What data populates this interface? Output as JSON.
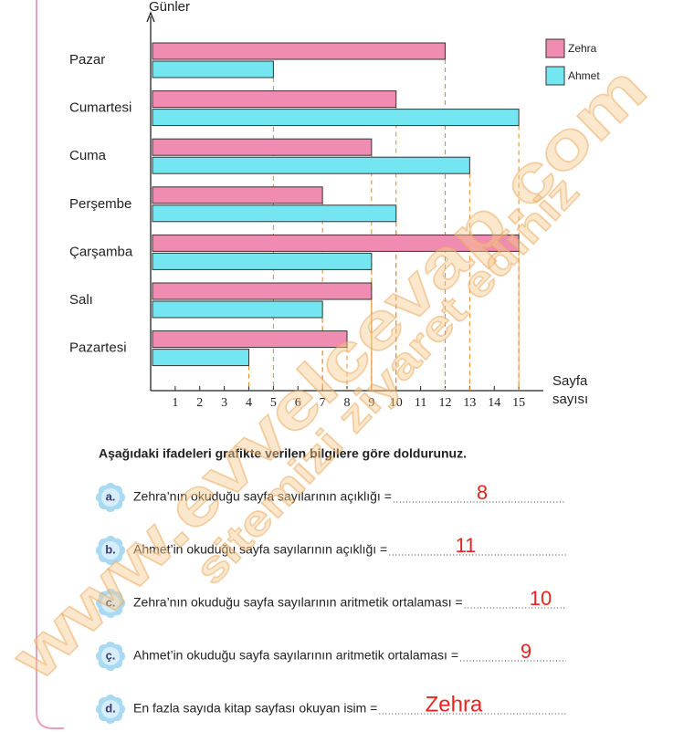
{
  "chart_data": {
    "type": "bar",
    "orientation": "horizontal",
    "y_label": "Günler",
    "x_label": [
      "Sayfa",
      "sayısı"
    ],
    "categories": [
      "Pazar",
      "Cumartesi",
      "Cuma",
      "Perşembe",
      "Çarşamba",
      "Salı",
      "Pazartesi"
    ],
    "series": [
      {
        "name": "Zehra",
        "color": "#f08cb2",
        "values": [
          12,
          10,
          9,
          7,
          15,
          9,
          8
        ]
      },
      {
        "name": "Ahmet",
        "color": "#74e6f2",
        "values": [
          5,
          15,
          13,
          10,
          9,
          7,
          4
        ]
      }
    ],
    "xlim": [
      0,
      16
    ],
    "xticks": [
      1,
      2,
      3,
      4,
      5,
      6,
      7,
      8,
      9,
      10,
      11,
      12,
      13,
      14,
      15
    ],
    "grid": false,
    "legend": "top-right"
  },
  "instruction": "Aşağıdaki ifadeleri grafikte verilen bilgilere göre doldurunuz.",
  "questions": [
    {
      "label": "a.",
      "text": "Zehra’nın okuduğu sayfa sayılarının açıklığı =",
      "answer": "8"
    },
    {
      "label": "b.",
      "text": "Ahmet’in okuduğu sayfa sayılarının açıklığı =",
      "answer": "11"
    },
    {
      "label": "c.",
      "text": "Zehra’nın okuduğu sayfa sayılarının aritmetik ortalaması =",
      "answer": "10"
    },
    {
      "label": "ç.",
      "text": "Ahmet’in okuduğu sayfa sayılarının aritmetik ortalaması =",
      "answer": "9"
    },
    {
      "label": "d.",
      "text": "En fazla sayıda kitap sayfası okuyan isim =",
      "answer": "Zehra"
    }
  ],
  "watermark": [
    "www.evvelcevap.com",
    "sitemizi ziyaret ediniz"
  ]
}
